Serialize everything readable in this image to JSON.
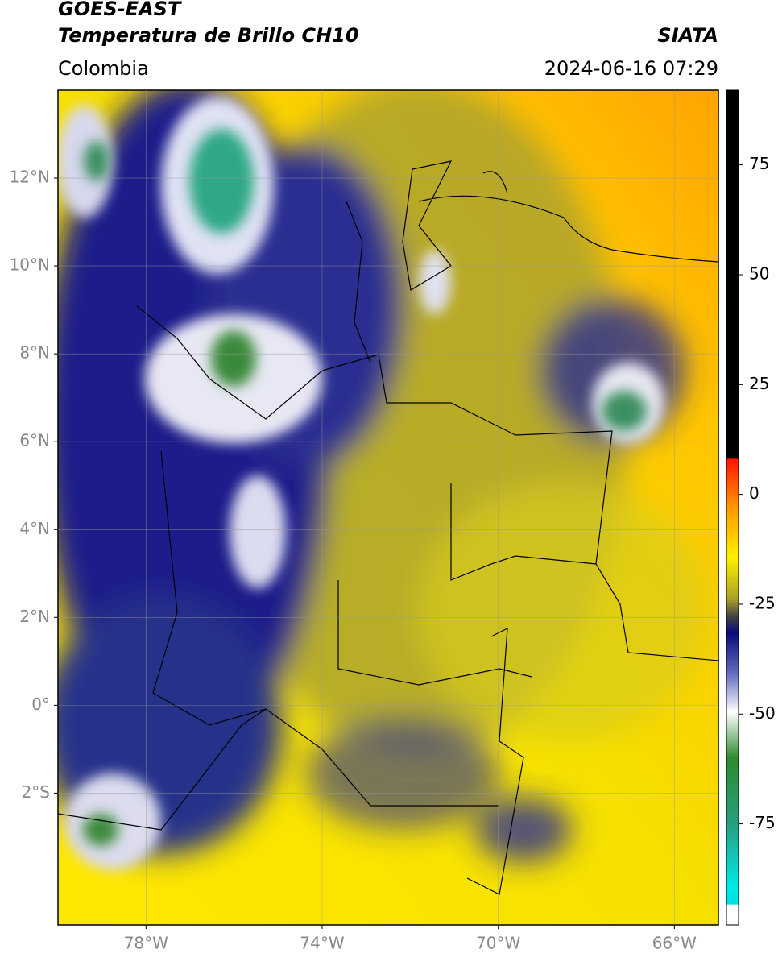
{
  "header": {
    "title": "GOES-EAST",
    "subtitle": "Temperatura de Brillo CH10",
    "source": "SIATA",
    "region": "Colombia",
    "datetime": "2024-06-16 07:29"
  },
  "map": {
    "xlim": [
      -80,
      -65
    ],
    "ylim": [
      -5,
      14
    ],
    "xticks": [
      {
        "value": -78,
        "label": "78°W"
      },
      {
        "value": -74,
        "label": "74°W"
      },
      {
        "value": -70,
        "label": "70°W"
      },
      {
        "value": -66,
        "label": "66°W"
      }
    ],
    "yticks": [
      {
        "value": 12,
        "label": "12°N"
      },
      {
        "value": 10,
        "label": "10°N"
      },
      {
        "value": 8,
        "label": "8°N"
      },
      {
        "value": 6,
        "label": "6°N"
      },
      {
        "value": 4,
        "label": "4°N"
      },
      {
        "value": 2,
        "label": "2°N"
      },
      {
        "value": 0,
        "label": "0°"
      },
      {
        "value": -2,
        "label": "2°S"
      }
    ],
    "grid": true
  },
  "colorbar": {
    "lim": [
      -98,
      92
    ],
    "ticks": [
      75,
      50,
      25,
      0,
      -25,
      -50,
      -75
    ]
  }
}
